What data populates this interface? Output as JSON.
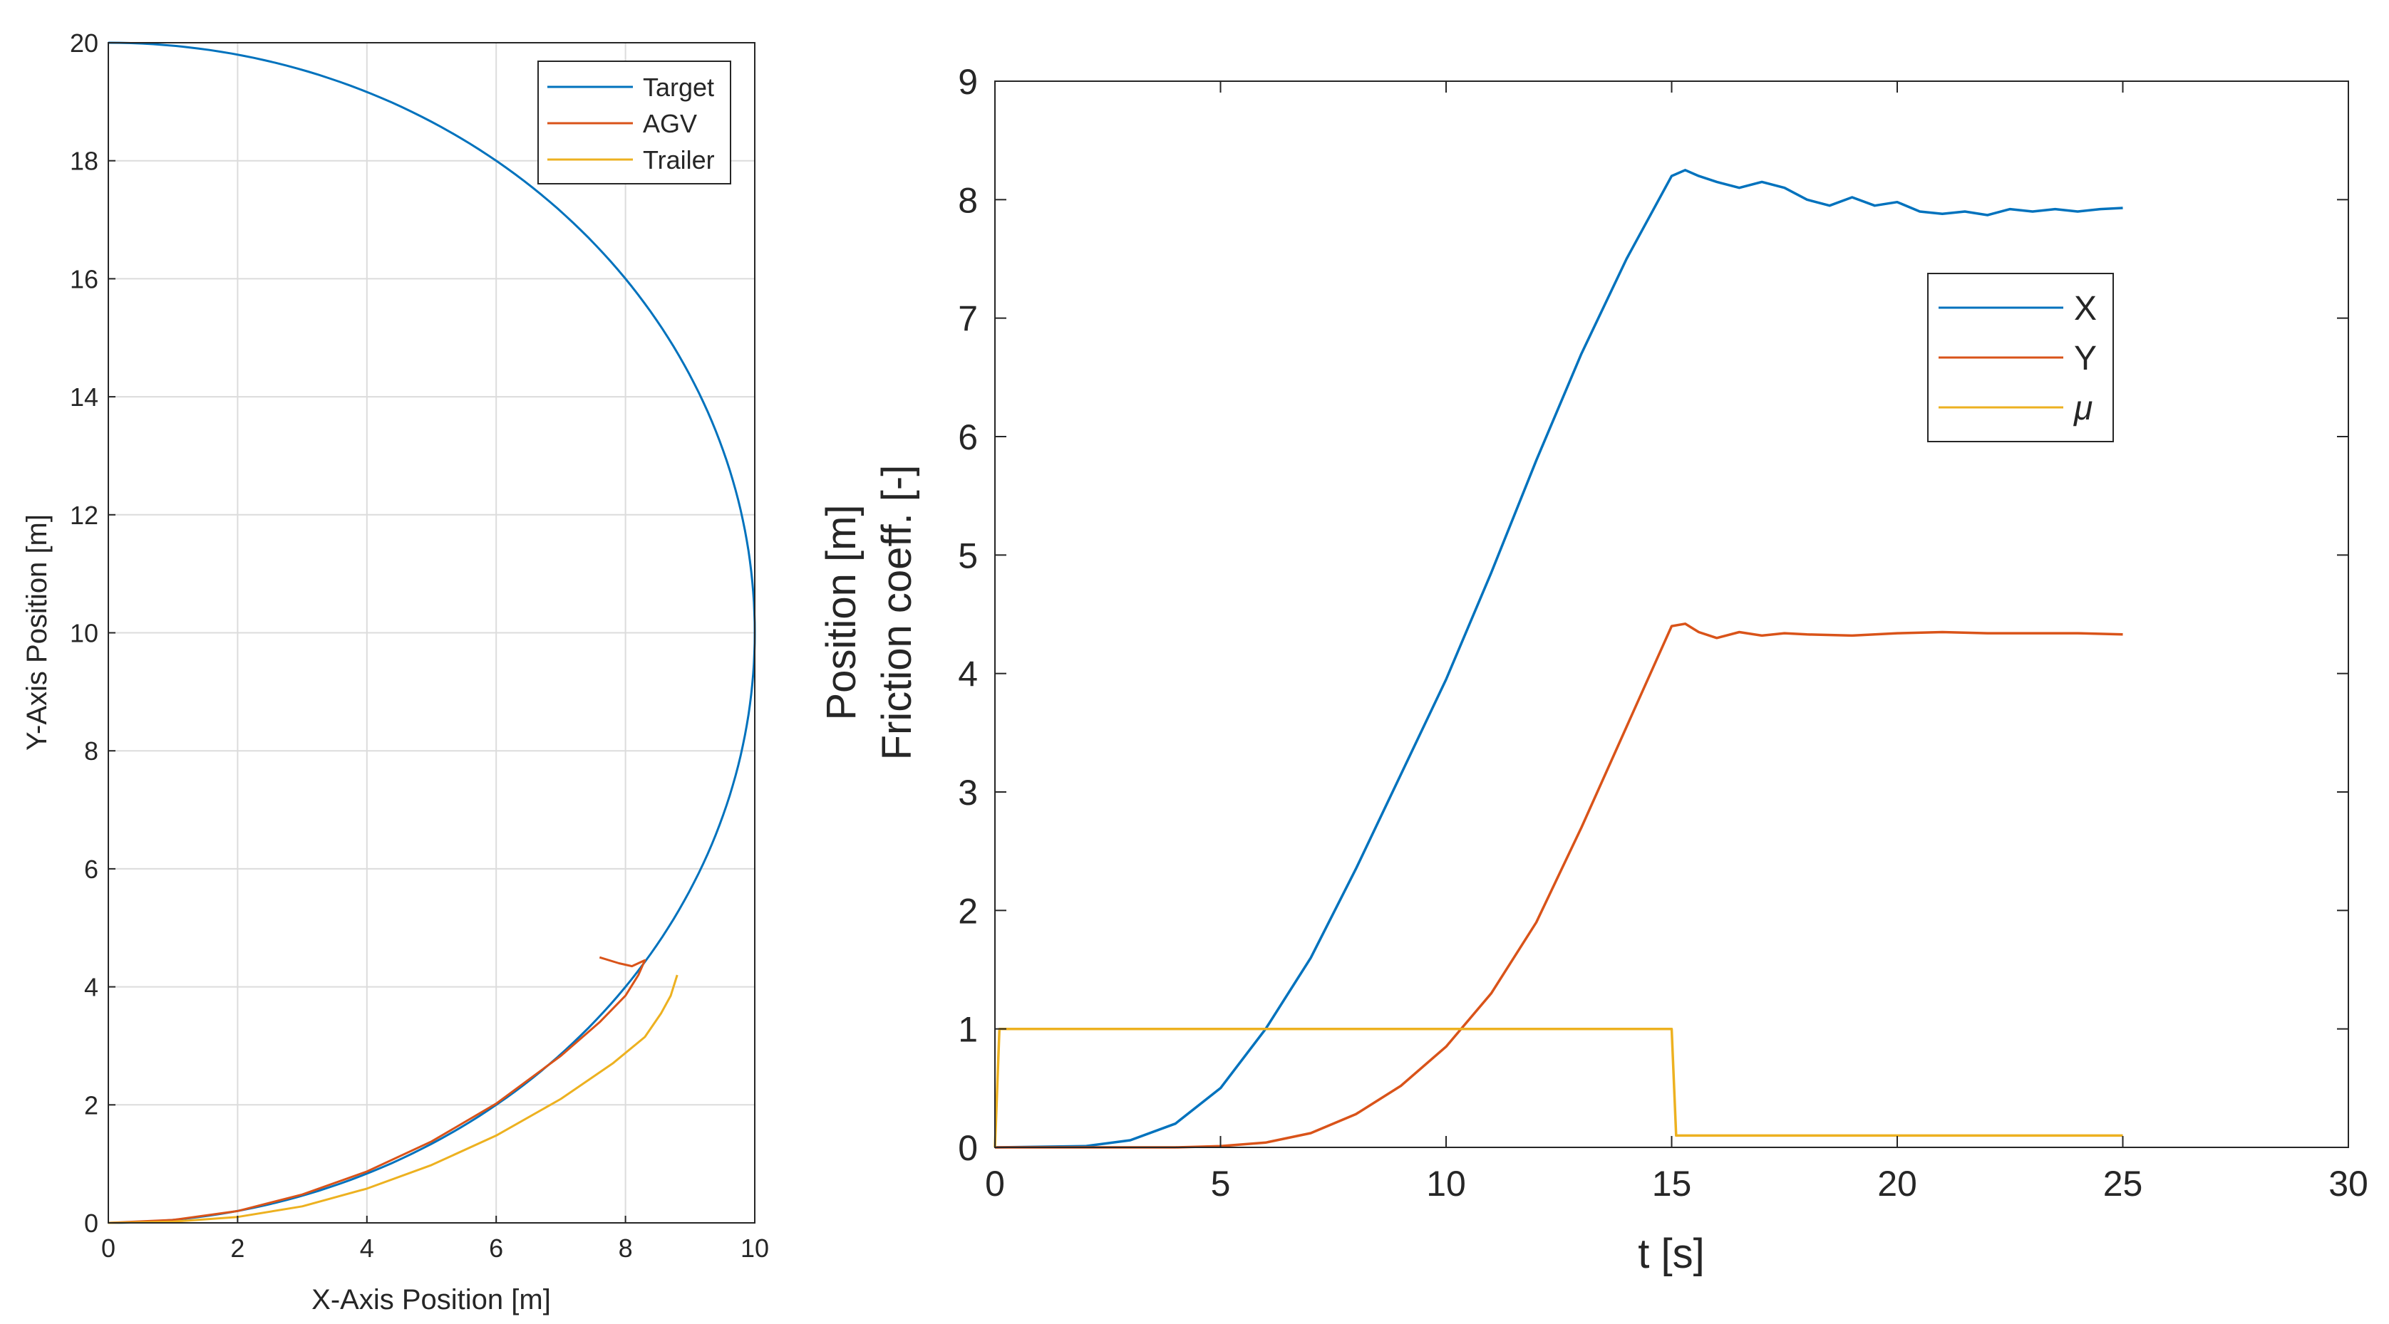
{
  "chart_data": [
    {
      "type": "line",
      "xlabel": "X-Axis Position [m]",
      "ylabel": "Y-Axis Position [m]",
      "xlim": [
        0,
        10
      ],
      "ylim": [
        0,
        20
      ],
      "xticks": [
        "0",
        "2",
        "4",
        "6",
        "8",
        "10"
      ],
      "yticks": [
        "0",
        "2",
        "4",
        "6",
        "8",
        "10",
        "12",
        "14",
        "16",
        "18",
        "20"
      ],
      "grid": true,
      "legend_position": "top-right",
      "series": [
        {
          "name": "Target",
          "color": "#0072BD",
          "description": "semicircle centered at (0,10), radius 10",
          "x": [
            0,
            1.74,
            3.42,
            5.0,
            6.43,
            7.66,
            8.66,
            9.4,
            9.85,
            10,
            9.85,
            9.4,
            8.66,
            7.66,
            6.43,
            5.0,
            3.42,
            1.74,
            0
          ],
          "y": [
            20,
            19.85,
            19.4,
            18.66,
            17.66,
            16.43,
            15.0,
            13.42,
            11.74,
            10,
            8.26,
            6.58,
            5.0,
            3.57,
            2.34,
            1.34,
            0.6,
            0.15,
            0
          ]
        },
        {
          "name": "AGV",
          "color": "#D95319",
          "x": [
            0,
            1.0,
            2.0,
            3.0,
            4.0,
            5.0,
            6.0,
            7.0,
            7.6,
            8.0,
            8.2,
            8.3,
            8.1,
            7.9,
            7.6
          ],
          "y": [
            0,
            0.05,
            0.2,
            0.48,
            0.87,
            1.38,
            2.02,
            2.83,
            3.4,
            3.85,
            4.2,
            4.45,
            4.35,
            4.4,
            4.5
          ]
        },
        {
          "name": "Trailer",
          "color": "#EDB120",
          "x": [
            0,
            1.0,
            2.0,
            3.0,
            4.0,
            5.0,
            6.0,
            7.0,
            7.8,
            8.3,
            8.55,
            8.7,
            8.8
          ],
          "y": [
            0,
            0.02,
            0.1,
            0.28,
            0.58,
            0.98,
            1.48,
            2.1,
            2.7,
            3.15,
            3.55,
            3.85,
            4.2
          ]
        }
      ]
    },
    {
      "type": "line",
      "xlabel": "t [s]",
      "ylabel": [
        "Position [m]",
        "Friction coeff. [-]"
      ],
      "xlim": [
        0,
        30
      ],
      "ylim": [
        0,
        9
      ],
      "xticks": [
        "0",
        "5",
        "10",
        "15",
        "20",
        "25",
        "30"
      ],
      "yticks": [
        "0",
        "1",
        "2",
        "3",
        "4",
        "5",
        "6",
        "7",
        "8",
        "9"
      ],
      "grid": false,
      "legend_position": "upper-right inside",
      "series": [
        {
          "name": "X",
          "color": "#0072BD",
          "t": [
            0,
            2,
            3,
            4,
            5,
            6,
            7,
            8,
            9,
            10,
            11,
            12,
            13,
            14,
            15,
            15.3,
            15.6,
            16,
            16.5,
            17,
            17.5,
            18,
            18.5,
            19,
            19.5,
            20,
            20.5,
            21,
            21.5,
            22,
            22.5,
            23,
            23.5,
            24,
            24.5,
            25
          ],
          "values": [
            0,
            0.01,
            0.06,
            0.2,
            0.5,
            1.0,
            1.6,
            2.35,
            3.15,
            3.95,
            4.85,
            5.8,
            6.7,
            7.5,
            8.2,
            8.25,
            8.2,
            8.15,
            8.1,
            8.15,
            8.1,
            8.0,
            7.95,
            8.02,
            7.95,
            7.98,
            7.9,
            7.88,
            7.9,
            7.87,
            7.92,
            7.9,
            7.92,
            7.9,
            7.92,
            7.93
          ]
        },
        {
          "name": "Y",
          "color": "#D95319",
          "t": [
            0,
            4,
            5,
            6,
            7,
            8,
            9,
            10,
            11,
            12,
            13,
            14,
            15,
            15.3,
            15.6,
            16,
            16.5,
            17,
            17.5,
            18,
            19,
            20,
            21,
            22,
            23,
            24,
            25
          ],
          "values": [
            0,
            0.0,
            0.01,
            0.04,
            0.12,
            0.28,
            0.52,
            0.85,
            1.3,
            1.9,
            2.7,
            3.55,
            4.4,
            4.42,
            4.35,
            4.3,
            4.35,
            4.32,
            4.34,
            4.33,
            4.32,
            4.34,
            4.35,
            4.34,
            4.34,
            4.34,
            4.33
          ]
        },
        {
          "name": "μ",
          "color": "#EDB120",
          "t": [
            0,
            0.1,
            15.0,
            15.1,
            25
          ],
          "values": [
            0,
            1.0,
            1.0,
            0.1,
            0.1
          ]
        }
      ]
    }
  ]
}
